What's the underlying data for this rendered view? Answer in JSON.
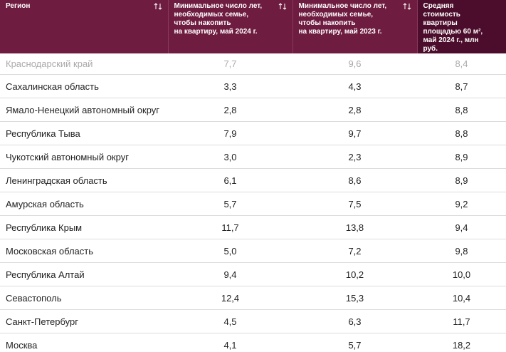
{
  "table": {
    "header": [
      "Регион",
      "Минимальное число лет,\nнеобходимых семье,\nчтобы накопить\nна квартиру, май 2024 г.",
      "Минимальное число лет,\nнеобходимых семье,\nчтобы накопить\nна квартиру, май 2023 г.",
      "Средняя стоимость\nквартиры\nплощадью 60 м²,\nмай 2024 г., млн\nруб."
    ],
    "rows": [
      [
        "Краснодарский край",
        "7,7",
        "9,6",
        "8,4"
      ],
      [
        "Сахалинская область",
        "3,3",
        "4,3",
        "8,7"
      ],
      [
        "Ямало-Ненецкий автономный округ",
        "2,8",
        "2,8",
        "8,8"
      ],
      [
        "Республика Тыва",
        "7,9",
        "9,7",
        "8,8"
      ],
      [
        "Чукотский автономный округ",
        "3,0",
        "2,3",
        "8,9"
      ],
      [
        "Ленинградская область",
        "6,1",
        "8,6",
        "8,9"
      ],
      [
        "Амурская область",
        "5,7",
        "7,5",
        "9,2"
      ],
      [
        "Республика Крым",
        "11,7",
        "13,8",
        "9,4"
      ],
      [
        "Московская область",
        "5,0",
        "7,2",
        "9,8"
      ],
      [
        "Республика Алтай",
        "9,4",
        "10,2",
        "10,0"
      ],
      [
        "Севастополь",
        "12,4",
        "15,3",
        "10,4"
      ],
      [
        "Санкт-Петербург",
        "4,5",
        "6,3",
        "11,7"
      ],
      [
        "Москва",
        "4,1",
        "5,7",
        "18,2"
      ]
    ]
  }
}
